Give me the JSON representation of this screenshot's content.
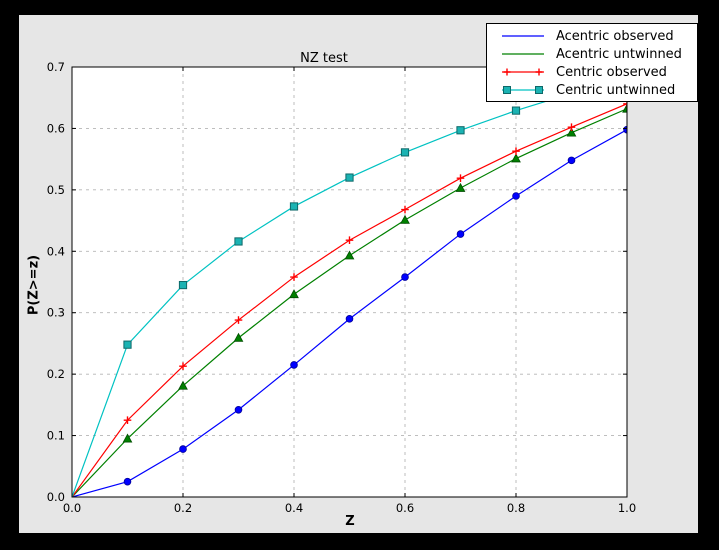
{
  "colors": {
    "background": "#000000",
    "figure_bg": "#e6e6e6",
    "plot_bg": "#ffffff",
    "grid": "#b5b5b5",
    "spine": "#000000",
    "tick_label": "#000000",
    "legend_bg": "#ffffff",
    "legend_border": "#000000"
  },
  "chart_data": {
    "type": "line",
    "title": "NZ test",
    "xlabel": "Z",
    "ylabel": "P(Z>=z)",
    "xlim": [
      0.0,
      1.0
    ],
    "ylim": [
      0.0,
      0.7
    ],
    "xticks": [
      "0.0",
      "0.2",
      "0.4",
      "0.6",
      "0.8",
      "1.0"
    ],
    "yticks": [
      "0.0",
      "0.1",
      "0.2",
      "0.3",
      "0.4",
      "0.5",
      "0.6",
      "0.7"
    ],
    "grid": true,
    "grid_style": "dashed",
    "legend_position": "upper right",
    "x": [
      0.0,
      0.1,
      0.2,
      0.3,
      0.4,
      0.5,
      0.6,
      0.7,
      0.8,
      0.9,
      1.0
    ],
    "series": [
      {
        "name": "Acentric observed",
        "color": "#0000ff",
        "marker": "circle",
        "marker_fill": "#0000ff",
        "marker_edge": "#000099",
        "legend_marker": "none",
        "values": [
          0.0,
          0.025,
          0.078,
          0.142,
          0.215,
          0.29,
          0.358,
          0.428,
          0.49,
          0.548,
          0.598
        ]
      },
      {
        "name": "Acentric untwinned",
        "color": "#008000",
        "marker": "triangle-up",
        "marker_fill": "#008000",
        "marker_edge": "#004d00",
        "legend_marker": "none",
        "values": [
          0.0,
          0.095,
          0.181,
          0.259,
          0.33,
          0.393,
          0.451,
          0.503,
          0.551,
          0.593,
          0.632
        ]
      },
      {
        "name": "Centric observed",
        "color": "#ff0000",
        "marker": "plus",
        "marker_fill": "none",
        "marker_edge": "#ff0000",
        "legend_marker": "plus",
        "values": [
          0.0,
          0.125,
          0.213,
          0.288,
          0.358,
          0.418,
          0.468,
          0.519,
          0.563,
          0.602,
          0.64
        ]
      },
      {
        "name": "Centric untwinned",
        "color": "#00c2c2",
        "marker": "square",
        "marker_fill": "#1bb3b3",
        "marker_edge": "#0e6868",
        "legend_marker": "square",
        "values": [
          0.0,
          0.248,
          0.345,
          0.416,
          0.473,
          0.52,
          0.561,
          0.597,
          0.629,
          0.657,
          0.683
        ]
      }
    ]
  }
}
